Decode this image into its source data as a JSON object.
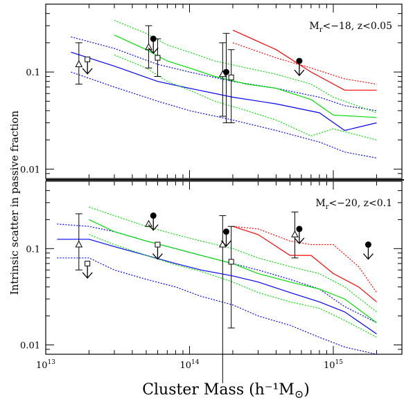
{
  "chart_data": {
    "type": "line",
    "xlabel": "Cluster Mass (h⁻¹M",
    "xlabel_symbol": "⊙",
    "xlabel_close": ")",
    "ylabel": "Intrinsic scatter in passive fraction",
    "x_scale": "log",
    "y_scale": "log",
    "xlim": [
      10000000000000.0,
      3000000000000000.0
    ],
    "x_tick_labels": [
      {
        "base": "10",
        "exp": "13"
      },
      {
        "base": "10",
        "exp": "14"
      },
      {
        "base": "10",
        "exp": "15"
      }
    ],
    "panels": [
      {
        "annotation": {
          "prefix": "M",
          "sub": "r",
          "rest": "<−18, z<0.05"
        },
        "ylim": [
          0.008,
          0.5
        ],
        "y_tick_labels": [
          "0.1",
          "0.01"
        ],
        "series": [
          {
            "color": "#0000ff",
            "style": "solid",
            "x": [
              15000000000000.0,
              30000000000000.0,
              60000000000000.0,
              100000000000000.0,
              200000000000000.0,
              400000000000000.0,
              800000000000000.0,
              1200000000000000.0,
              2000000000000000.0
            ],
            "y": [
              0.16,
              0.115,
              0.08,
              0.068,
              0.055,
              0.047,
              0.038,
              0.025,
              0.03
            ]
          },
          {
            "color": "#0000ff",
            "style": "dotted",
            "x": [
              15000000000000.0,
              30000000000000.0,
              60000000000000.0,
              100000000000000.0,
              200000000000000.0,
              400000000000000.0,
              800000000000000.0,
              1200000000000000.0,
              2000000000000000.0
            ],
            "y": [
              0.23,
              0.175,
              0.12,
              0.1,
              0.08,
              0.068,
              0.055,
              0.045,
              0.04
            ]
          },
          {
            "color": "#0000ff",
            "style": "dotted",
            "x": [
              15000000000000.0,
              30000000000000.0,
              60000000000000.0,
              100000000000000.0,
              200000000000000.0,
              400000000000000.0,
              800000000000000.0,
              1200000000000000.0,
              2000000000000000.0
            ],
            "y": [
              0.1,
              0.07,
              0.05,
              0.04,
              0.032,
              0.025,
              0.019,
              0.015,
              0.013
            ]
          },
          {
            "color": "#00dd00",
            "style": "solid",
            "x": [
              30000000000000.0,
              50000000000000.0,
              70000000000000.0,
              100000000000000.0,
              150000000000000.0,
              250000000000000.0,
              400000000000000.0,
              700000000000000.0,
              1000000000000000.0,
              2000000000000000.0
            ],
            "y": [
              0.24,
              0.17,
              0.13,
              0.11,
              0.09,
              0.075,
              0.068,
              0.052,
              0.036,
              0.034
            ]
          },
          {
            "color": "#00dd00",
            "style": "dotted",
            "x": [
              30000000000000.0,
              50000000000000.0,
              70000000000000.0,
              100000000000000.0,
              150000000000000.0,
              250000000000000.0,
              400000000000000.0,
              700000000000000.0,
              1000000000000000.0,
              2000000000000000.0
            ],
            "y": [
              0.34,
              0.25,
              0.19,
              0.16,
              0.13,
              0.11,
              0.095,
              0.075,
              0.055,
              0.038
            ]
          },
          {
            "color": "#00dd00",
            "style": "dotted",
            "x": [
              30000000000000.0,
              50000000000000.0,
              70000000000000.0,
              100000000000000.0,
              150000000000000.0,
              250000000000000.0,
              400000000000000.0,
              700000000000000.0,
              1000000000000000.0,
              2000000000000000.0
            ],
            "y": [
              0.15,
              0.11,
              0.08,
              0.065,
              0.05,
              0.04,
              0.032,
              0.022,
              0.026,
              0.02
            ]
          },
          {
            "color": "#ff0000",
            "style": "solid",
            "x": [
              200000000000000.0,
              400000000000000.0,
              700000000000000.0,
              1200000000000000.0,
              2000000000000000.0
            ],
            "y": [
              0.27,
              0.17,
              0.1,
              0.065,
              0.065
            ]
          },
          {
            "color": "#ff0000",
            "style": "dotted",
            "x": [
              200000000000000.0,
              400000000000000.0,
              700000000000000.0,
              1200000000000000.0,
              2000000000000000.0
            ],
            "y": [
              0.2,
              0.14,
              0.11,
              0.085,
              0.075
            ]
          }
        ],
        "points": [
          {
            "marker": "triangle",
            "x": 17000000000000.0,
            "y": 0.12,
            "err": [
              0.075,
              0.2
            ],
            "upper_limit": false
          },
          {
            "marker": "square",
            "x": 19500000000000.0,
            "y": 0.135,
            "err": null,
            "upper_limit": true
          },
          {
            "marker": "triangle",
            "x": 52000000000000.0,
            "y": 0.18,
            "err": [
              0.11,
              0.3
            ],
            "upper_limit": false
          },
          {
            "marker": "circle",
            "x": 56000000000000.0,
            "y": 0.22,
            "err": null,
            "upper_limit": true
          },
          {
            "marker": "square",
            "x": 60000000000000.0,
            "y": 0.14,
            "err": [
              0.09,
              0.22
            ],
            "upper_limit": false
          },
          {
            "marker": "triangle",
            "x": 170000000000000.0,
            "y": 0.095,
            "err": [
              0.035,
              0.2
            ],
            "upper_limit": false
          },
          {
            "marker": "circle",
            "x": 180000000000000.0,
            "y": 0.1,
            "err": [
              0.03,
              0.25
            ],
            "upper_limit": false
          },
          {
            "marker": "square",
            "x": 195000000000000.0,
            "y": 0.088,
            "err": [
              0.03,
              0.17
            ],
            "upper_limit": false
          },
          {
            "marker": "circle",
            "x": 580000000000000.0,
            "y": 0.13,
            "err": null,
            "upper_limit": true
          }
        ]
      },
      {
        "annotation": {
          "prefix": "M",
          "sub": "r",
          "rest": "<−20, z<0.1"
        },
        "ylim": [
          0.008,
          0.5
        ],
        "y_tick_labels": [
          "0.1",
          "0.01"
        ],
        "series": [
          {
            "color": "#0000ff",
            "style": "solid",
            "x": [
              12000000000000.0,
              20000000000000.0,
              30000000000000.0,
              50000000000000.0,
              80000000000000.0,
              120000000000000.0,
              200000000000000.0,
              300000000000000.0,
              500000000000000.0,
              800000000000000.0,
              1200000000000000.0,
              2000000000000000.0
            ],
            "y": [
              0.125,
              0.125,
              0.105,
              0.085,
              0.07,
              0.06,
              0.052,
              0.045,
              0.035,
              0.028,
              0.022,
              0.013
            ]
          },
          {
            "color": "#0000ff",
            "style": "dotted",
            "x": [
              12000000000000.0,
              20000000000000.0,
              30000000000000.0,
              50000000000000.0,
              80000000000000.0,
              120000000000000.0,
              200000000000000.0,
              300000000000000.0,
              500000000000000.0,
              800000000000000.0,
              1200000000000000.0,
              2000000000000000.0
            ],
            "y": [
              0.18,
              0.17,
              0.15,
              0.12,
              0.1,
              0.085,
              0.07,
              0.06,
              0.048,
              0.038,
              0.025,
              0.017
            ]
          },
          {
            "color": "#0000ff",
            "style": "dotted",
            "x": [
              12000000000000.0,
              20000000000000.0,
              30000000000000.0,
              50000000000000.0,
              80000000000000.0,
              120000000000000.0,
              200000000000000.0,
              300000000000000.0,
              500000000000000.0,
              800000000000000.0,
              1200000000000000.0,
              2000000000000000.0
            ],
            "y": [
              0.08,
              0.08,
              0.06,
              0.048,
              0.04,
              0.032,
              0.026,
              0.02,
              0.016,
              0.012,
              0.0095,
              0.008
            ]
          },
          {
            "color": "#00dd00",
            "style": "solid",
            "x": [
              20000000000000.0,
              30000000000000.0,
              50000000000000.0,
              80000000000000.0,
              120000000000000.0,
              200000000000000.0,
              300000000000000.0,
              500000000000000.0,
              800000000000000.0,
              1200000000000000.0,
              2000000000000000.0
            ],
            "y": [
              0.2,
              0.15,
              0.12,
              0.1,
              0.085,
              0.07,
              0.055,
              0.045,
              0.038,
              0.03,
              0.017
            ]
          },
          {
            "color": "#00dd00",
            "style": "dotted",
            "x": [
              20000000000000.0,
              30000000000000.0,
              50000000000000.0,
              80000000000000.0,
              120000000000000.0,
              200000000000000.0,
              300000000000000.0,
              500000000000000.0,
              800000000000000.0,
              1200000000000000.0,
              2000000000000000.0
            ],
            "y": [
              0.27,
              0.22,
              0.17,
              0.14,
              0.12,
              0.1,
              0.08,
              0.065,
              0.055,
              0.04,
              0.022
            ]
          },
          {
            "color": "#00dd00",
            "style": "dotted",
            "x": [
              20000000000000.0,
              30000000000000.0,
              50000000000000.0,
              80000000000000.0,
              120000000000000.0,
              200000000000000.0,
              300000000000000.0,
              500000000000000.0,
              800000000000000.0,
              1200000000000000.0,
              2000000000000000.0
            ],
            "y": [
              0.14,
              0.11,
              0.085,
              0.068,
              0.058,
              0.045,
              0.035,
              0.028,
              0.024,
              0.018,
              0.012
            ]
          },
          {
            "color": "#ff0000",
            "style": "solid",
            "x": [
              200000000000000.0,
              300000000000000.0,
              500000000000000.0,
              700000000000000.0,
              1000000000000000.0,
              1500000000000000.0,
              2000000000000000.0
            ],
            "y": [
              0.17,
              0.14,
              0.085,
              0.085,
              0.055,
              0.04,
              0.028
            ]
          },
          {
            "color": "#ff0000",
            "style": "dotted",
            "x": [
              200000000000000.0,
              300000000000000.0,
              500000000000000.0,
              700000000000000.0,
              1000000000000000.0,
              1500000000000000.0,
              2000000000000000.0
            ],
            "y": [
              0.17,
              0.16,
              0.12,
              0.11,
              0.11,
              0.065,
              0.035
            ]
          }
        ],
        "points": [
          {
            "marker": "triangle",
            "x": 17000000000000.0,
            "y": 0.11,
            "err": [
              0.06,
              0.23
            ],
            "upper_limit": false
          },
          {
            "marker": "square",
            "x": 19500000000000.0,
            "y": 0.07,
            "err": null,
            "upper_limit": true
          },
          {
            "marker": "triangle",
            "x": 52000000000000.0,
            "y": 0.18,
            "err": null,
            "upper_limit": false
          },
          {
            "marker": "circle",
            "x": 56000000000000.0,
            "y": 0.22,
            "err": null,
            "upper_limit": true
          },
          {
            "marker": "square",
            "x": 60000000000000.0,
            "y": 0.11,
            "err": null,
            "upper_limit": true
          },
          {
            "marker": "triangle",
            "x": 170000000000000.0,
            "y": 0.11,
            "err": [
              0.004,
              0.22
            ],
            "upper_limit": false
          },
          {
            "marker": "circle",
            "x": 180000000000000.0,
            "y": 0.15,
            "err": null,
            "upper_limit": true
          },
          {
            "marker": "square",
            "x": 195000000000000.0,
            "y": 0.073,
            "err": [
              0.015,
              0.17
            ],
            "upper_limit": false
          },
          {
            "marker": "triangle",
            "x": 540000000000000.0,
            "y": 0.14,
            "err": [
              0.08,
              0.24
            ],
            "upper_limit": false
          },
          {
            "marker": "circle",
            "x": 580000000000000.0,
            "y": 0.16,
            "err": null,
            "upper_limit": true
          },
          {
            "marker": "circle",
            "x": 1750000000000000.0,
            "y": 0.11,
            "err": null,
            "upper_limit": true
          }
        ]
      }
    ]
  }
}
